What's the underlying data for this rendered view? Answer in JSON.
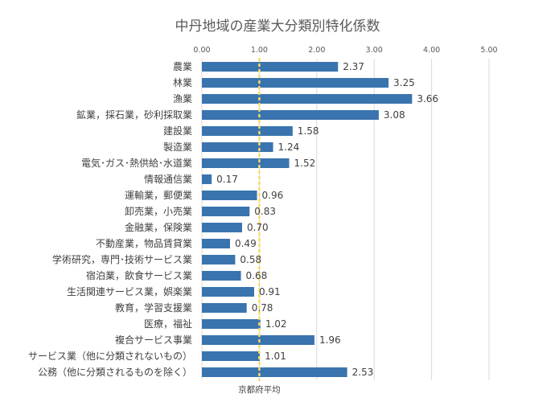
{
  "chart_data": {
    "type": "bar",
    "orientation": "horizontal",
    "title": "中丹地域の産業大分類別特化係数",
    "categories": [
      "農業",
      "林業",
      "漁業",
      "鉱業，採石業，砂利採取業",
      "建設業",
      "製造業",
      "電気･ガス･熱供給･水道業",
      "情報通信業",
      "運輸業，郵便業",
      "卸売業，小売業",
      "金融業，保険業",
      "不動産業，物品賃貸業",
      "学術研究，専門･技術サービス業",
      "宿泊業，飲食サービス業",
      "生活関連サービス業，娯楽業",
      "教育，学習支援業",
      "医療，福祉",
      "複合サービス事業",
      "サービス業（他に分類されないもの）",
      "公務（他に分類されるものを除く）"
    ],
    "values": [
      2.37,
      3.25,
      3.66,
      3.08,
      1.58,
      1.24,
      1.52,
      0.17,
      0.96,
      0.83,
      0.7,
      0.49,
      0.58,
      0.68,
      0.91,
      0.78,
      1.02,
      1.96,
      1.01,
      2.53
    ],
    "value_labels": [
      "2.37",
      "3.25",
      "3.66",
      "3.08",
      "1.58",
      "1.24",
      "1.52",
      "0.17",
      "0.96",
      "0.83",
      "0.70",
      "0.49",
      "0.58",
      "0.68",
      "0.91",
      "0.78",
      "1.02",
      "1.96",
      "1.01",
      "2.53"
    ],
    "xlim": [
      0,
      5
    ],
    "x_ticks": [
      0,
      1,
      2,
      3,
      4,
      5
    ],
    "x_tick_labels": [
      "0.00",
      "1.00",
      "2.00",
      "3.00",
      "4.00",
      "5.00"
    ],
    "x_axis_position": "top",
    "grid": true,
    "reference_line": {
      "value": 1.0,
      "label": "京都府平均",
      "color": "#FFD966"
    },
    "colors": {
      "bar": "#3A74AE",
      "grid": "#D9D9D9",
      "text": "#404040"
    }
  }
}
